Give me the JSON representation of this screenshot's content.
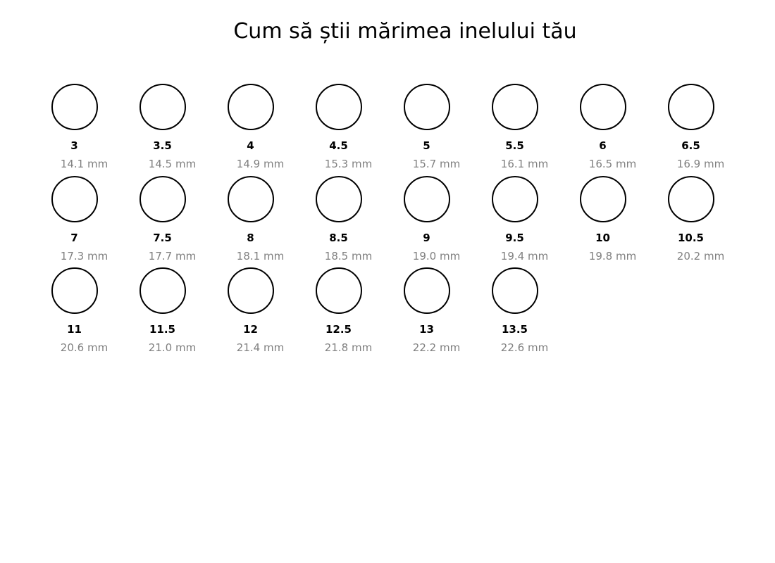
{
  "title": "Cum să știi mărimea inelului tău",
  "colors": {
    "background": "#ffffff",
    "circle_stroke": "#000000",
    "size_label": "#000000",
    "diameter_label": "#808080"
  },
  "rows": [
    [
      {
        "size": "3",
        "diameter": "14.1 mm"
      },
      {
        "size": "3.5",
        "diameter": "14.5 mm"
      },
      {
        "size": "4",
        "diameter": "14.9 mm"
      },
      {
        "size": "4.5",
        "diameter": "15.3 mm"
      },
      {
        "size": "5",
        "diameter": "15.7 mm"
      },
      {
        "size": "5.5",
        "diameter": "16.1 mm"
      },
      {
        "size": "6",
        "diameter": "16.5 mm"
      },
      {
        "size": "6.5",
        "diameter": "16.9 mm"
      }
    ],
    [
      {
        "size": "7",
        "diameter": "17.3 mm"
      },
      {
        "size": "7.5",
        "diameter": "17.7 mm"
      },
      {
        "size": "8",
        "diameter": "18.1 mm"
      },
      {
        "size": "8.5",
        "diameter": "18.5 mm"
      },
      {
        "size": "9",
        "diameter": "19.0 mm"
      },
      {
        "size": "9.5",
        "diameter": "19.4 mm"
      },
      {
        "size": "10",
        "diameter": "19.8 mm"
      },
      {
        "size": "10.5",
        "diameter": "20.2 mm"
      }
    ],
    [
      {
        "size": "11",
        "diameter": "20.6 mm"
      },
      {
        "size": "11.5",
        "diameter": "21.0 mm"
      },
      {
        "size": "12",
        "diameter": "21.4 mm"
      },
      {
        "size": "12.5",
        "diameter": "21.8 mm"
      },
      {
        "size": "13",
        "diameter": "22.2 mm"
      },
      {
        "size": "13.5",
        "diameter": "22.6 mm"
      }
    ]
  ]
}
